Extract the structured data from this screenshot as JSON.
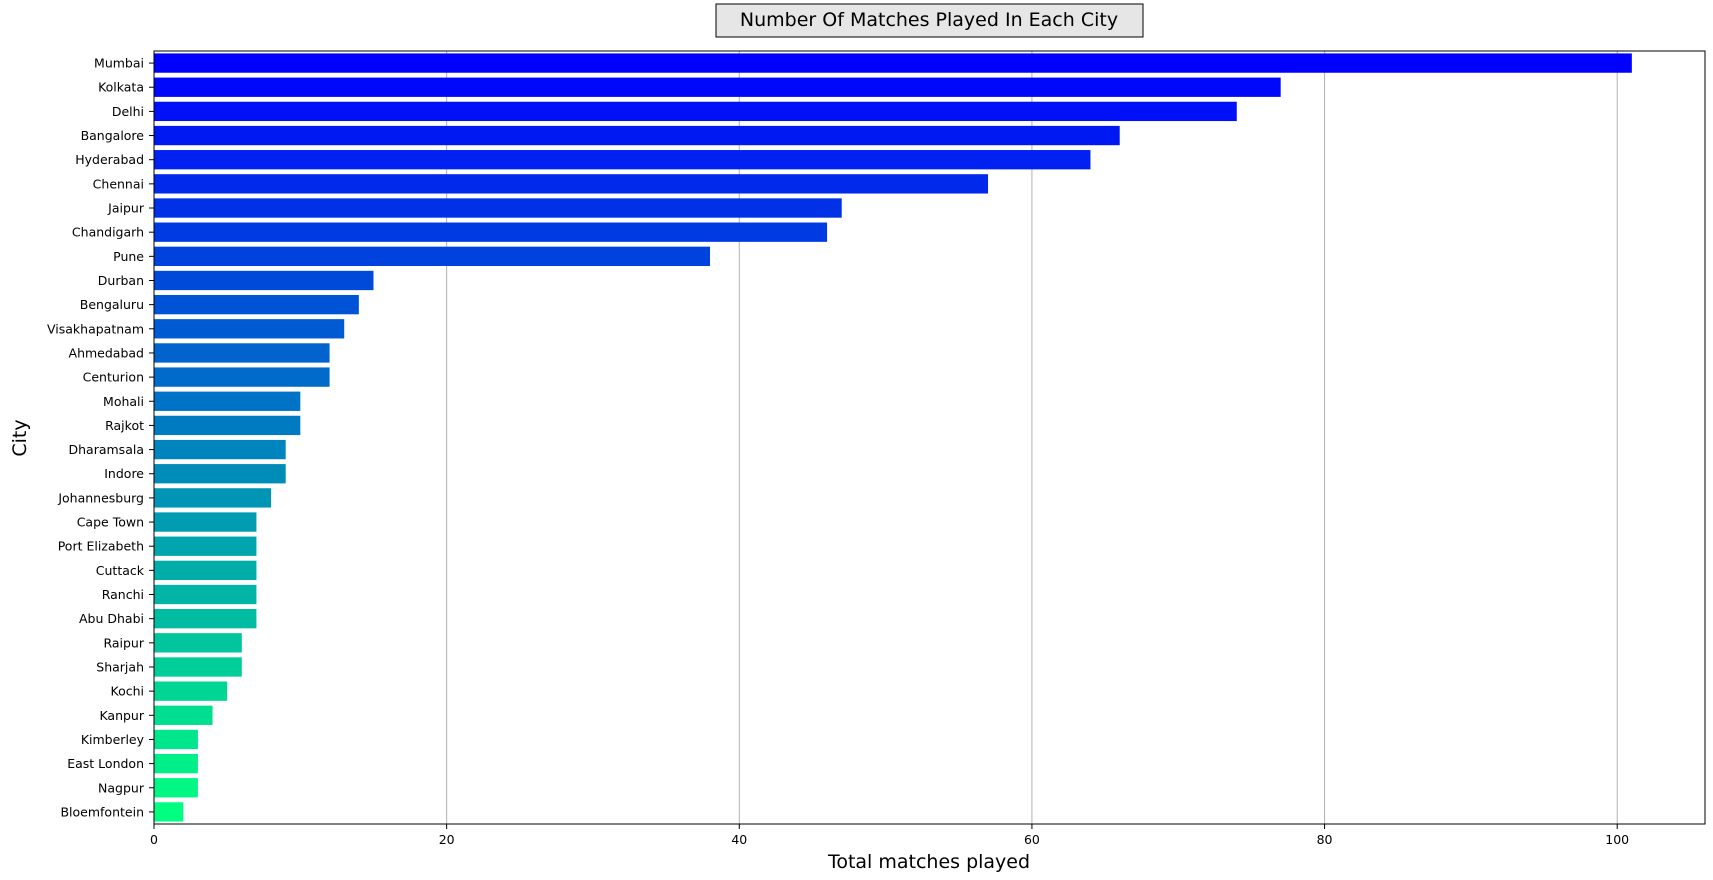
{
  "chart_data": {
    "type": "bar",
    "orientation": "horizontal",
    "title": "Number Of Matches Played In Each City",
    "xlabel": "Total matches played",
    "ylabel": "City",
    "xlim": [
      0,
      106
    ],
    "xticks": [
      0,
      20,
      40,
      60,
      80,
      100
    ],
    "grid": "x",
    "categories": [
      "Mumbai",
      "Kolkata",
      "Delhi",
      "Bangalore",
      "Hyderabad",
      "Chennai",
      "Jaipur",
      "Chandigarh",
      "Pune",
      "Durban",
      "Bengaluru",
      "Visakhapatnam",
      "Ahmedabad",
      "Centurion",
      "Mohali",
      "Rajkot",
      "Dharamsala",
      "Indore",
      "Johannesburg",
      "Cape Town",
      "Port Elizabeth",
      "Cuttack",
      "Ranchi",
      "Abu Dhabi",
      "Raipur",
      "Sharjah",
      "Kochi",
      "Kanpur",
      "Kimberley",
      "East London",
      "Nagpur",
      "Bloemfontein"
    ],
    "values": [
      101,
      77,
      74,
      66,
      64,
      57,
      47,
      46,
      38,
      15,
      14,
      13,
      12,
      12,
      10,
      10,
      9,
      9,
      8,
      7,
      7,
      7,
      7,
      7,
      6,
      6,
      5,
      4,
      3,
      3,
      3,
      2
    ],
    "colormap": "winter",
    "color_start": "#0000ff",
    "color_end": "#00ff80",
    "title_box_fill": "#e6e6e6",
    "grid_color": "#b0b0b0"
  }
}
